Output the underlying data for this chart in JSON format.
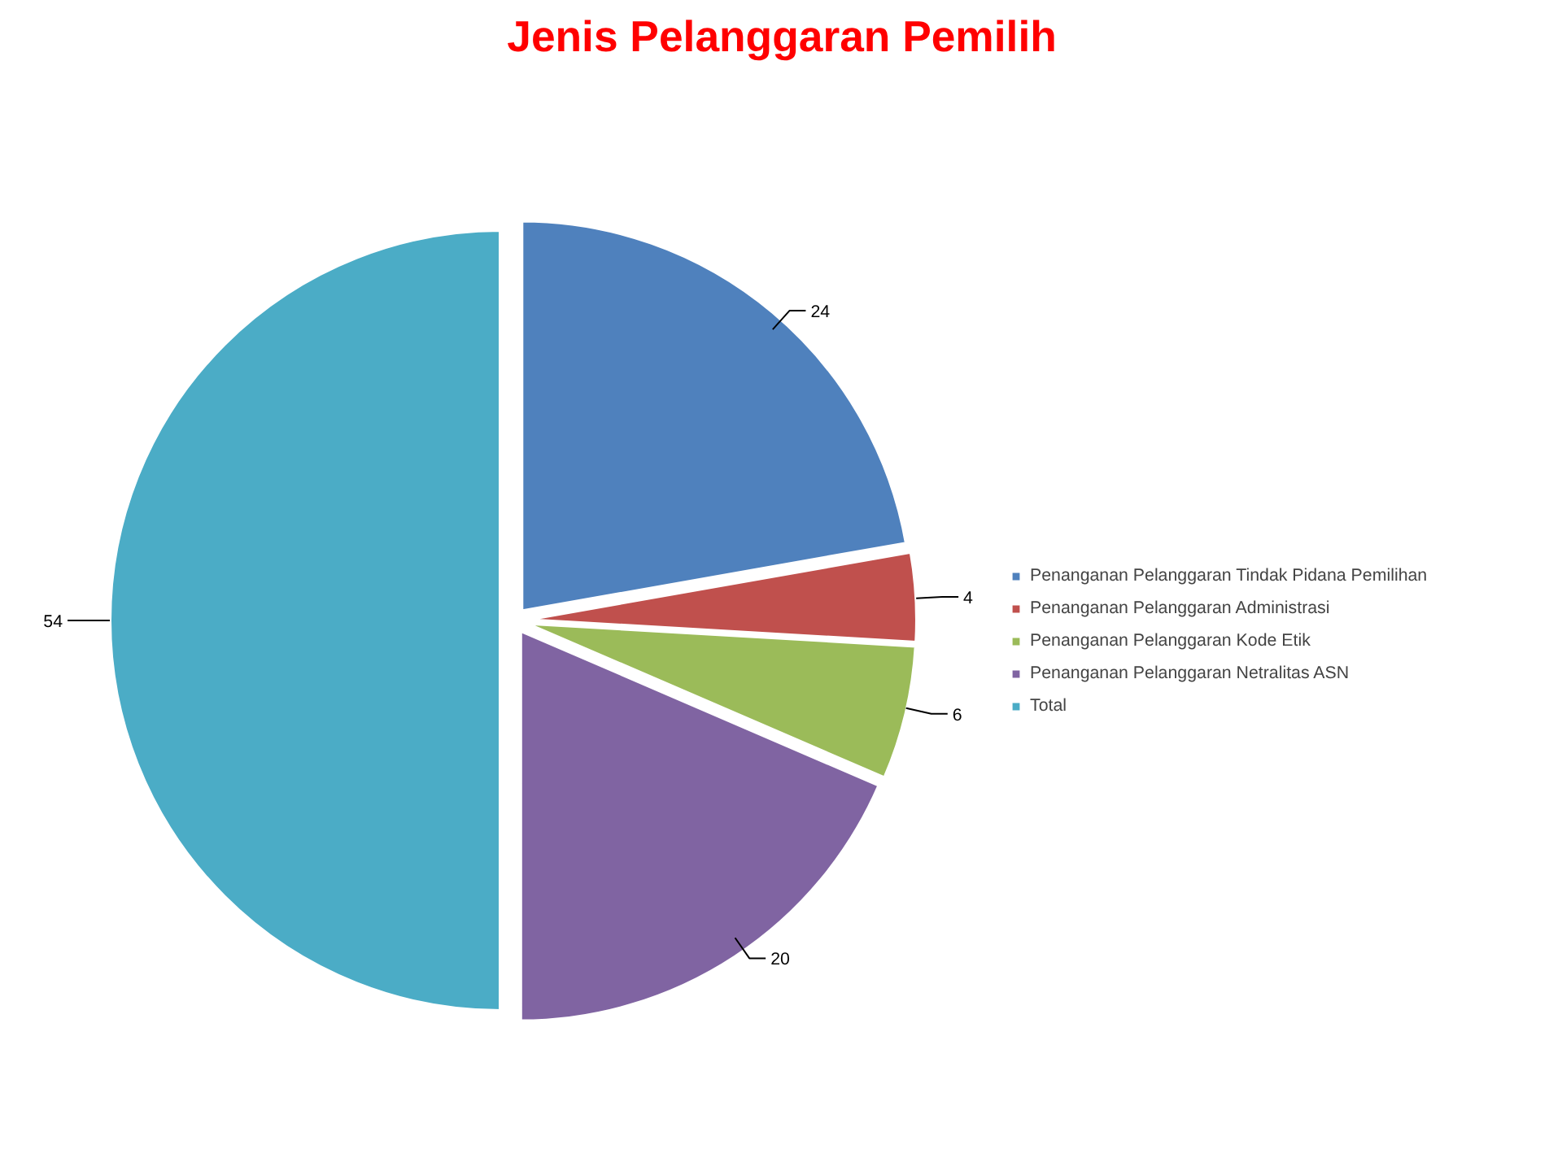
{
  "chart_data": {
    "type": "pie",
    "title": "Jenis Pelanggaran Pemilih",
    "categories": [
      "Penanganan Pelanggaran Tindak Pidana Pemilihan",
      "Penanganan Pelanggaran Administrasi",
      "Penanganan Pelanggaran Kode Etik",
      "Penanganan Pelanggaran Netralitas ASN",
      "Total"
    ],
    "values": [
      24,
      4,
      6,
      20,
      54
    ],
    "colors": [
      "#4f81bd",
      "#c0504d",
      "#9bbb59",
      "#8064a2",
      "#4bacc6"
    ],
    "data_labels": true,
    "legend": "right"
  }
}
